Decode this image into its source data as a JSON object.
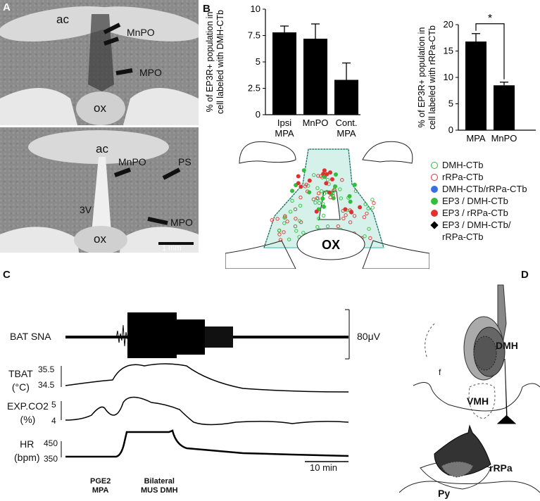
{
  "panels": {
    "A": {
      "letter": "A",
      "top_labels": {
        "ac": "ac",
        "mnpo": "MnPO",
        "mpo": "MPO",
        "ox": "ox"
      },
      "bottom_labels": {
        "ac": "ac",
        "mnpo": "MnPO",
        "ps": "PS",
        "v3": "3V",
        "mpo": "MPO",
        "ox": "ox"
      },
      "scale": "1 mm"
    },
    "B": {
      "letter": "B"
    },
    "C": {
      "letter": "C",
      "traces": {
        "bat_sna": "BAT SNA",
        "bat_scale": "80μV",
        "tbat": [
          "TBAT",
          "(°C)"
        ],
        "tbat_ticks": [
          "35.5",
          "34.5"
        ],
        "co2": [
          "EXP.CO2",
          "(%)"
        ],
        "co2_ticks": [
          "5",
          "4"
        ],
        "hr": [
          "HR",
          "(bpm)"
        ],
        "hr_ticks": [
          "450",
          "350"
        ],
        "time_scale": "10 min",
        "events": [
          {
            "line1": "PGE2",
            "line2": "MPA"
          },
          {
            "line1": "Bilateral",
            "line2": "MUS DMH"
          }
        ]
      }
    },
    "D": {
      "letter": "D",
      "labels": {
        "f": "f",
        "dmh": "DMH",
        "vmh": "VMH",
        "rrpa": "rRPa",
        "py": "Py"
      }
    }
  },
  "legend": {
    "items": [
      {
        "label": "DMH-CTb",
        "color": "#2fbf3a",
        "shape": "ring"
      },
      {
        "label": "rRPa-CTb",
        "color": "#e03030",
        "shape": "ring"
      },
      {
        "label": "DMH-CTb/rRPa-CTb",
        "color": "#3a6fe0",
        "shape": "dot"
      },
      {
        "label": "EP3 / DMH-CTb",
        "color": "#2fbf3a",
        "shape": "dot"
      },
      {
        "label": "EP3 / rRPa-CTb",
        "color": "#e03030",
        "shape": "dot"
      },
      {
        "label": "EP3 / DMH-CTb/",
        "label2": "rRPa-CTb",
        "color": "#000000",
        "shape": "diamond"
      }
    ]
  },
  "map": {
    "ox": "OX"
  },
  "chart_data": [
    {
      "type": "bar",
      "categories": [
        "Ipsi MPA",
        "MnPO",
        "Cont. MPA"
      ],
      "values": [
        7.8,
        7.2,
        3.3
      ],
      "errors": [
        0.6,
        1.4,
        1.6
      ],
      "ylabel": "% of EP3R+ population in cell labeled with DMH-CTb",
      "ylim": [
        0,
        10
      ],
      "yticks": [
        "0",
        "2.5",
        "5",
        "7.5",
        "10"
      ]
    },
    {
      "type": "bar",
      "categories": [
        "MPA",
        "MnPO"
      ],
      "values": [
        16.8,
        8.5
      ],
      "errors": [
        1.5,
        0.6
      ],
      "ylabel": "% of EP3R+ population in cell labeled with rRPa-CTb",
      "ylim": [
        0,
        20
      ],
      "yticks": [
        "0",
        "5",
        "10",
        "15",
        "20"
      ],
      "significance": "*"
    }
  ]
}
